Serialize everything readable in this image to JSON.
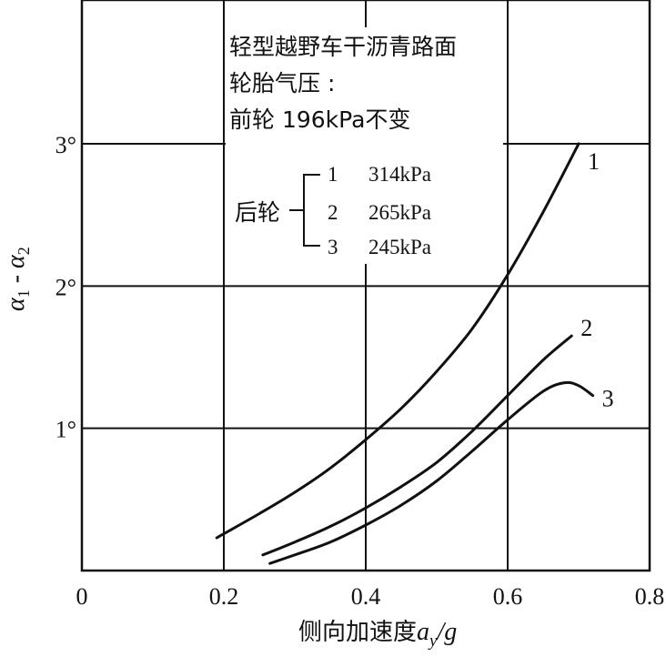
{
  "chart_data": {
    "type": "line",
    "title": "",
    "xlabel": "侧向加速度",
    "xlabel_var": "a",
    "xlabel_sub": "y",
    "xlabel_tail": "/g",
    "ylabel_parts": [
      "α",
      "1",
      " - ",
      "α",
      "2"
    ],
    "xlim": [
      0,
      0.8
    ],
    "ylim": [
      0,
      3
    ],
    "x_ticks": [
      0,
      0.2,
      0.4,
      0.6,
      0.8
    ],
    "x_tick_labels": [
      "0",
      "0.2",
      "0.4",
      "0.6",
      "0.8"
    ],
    "y_ticks": [
      1,
      2,
      3
    ],
    "y_tick_labels": [
      "1°",
      "2°",
      "3°"
    ],
    "grid": true,
    "annotation": {
      "lines": [
        "轻型越野车干沥青路面",
        "轮胎气压 :",
        "前轮 196kPa不变"
      ],
      "rear_label": "后轮",
      "rear_items": [
        {
          "num": "1",
          "value": "314kPa"
        },
        {
          "num": "2",
          "value": "265kPa"
        },
        {
          "num": "3",
          "value": "245kPa"
        }
      ]
    },
    "series": [
      {
        "label": "1",
        "x": [
          0.19,
          0.25,
          0.3,
          0.35,
          0.4,
          0.45,
          0.5,
          0.55,
          0.6,
          0.65,
          0.7
        ],
        "y": [
          0.23,
          0.4,
          0.55,
          0.72,
          0.92,
          1.14,
          1.4,
          1.7,
          2.08,
          2.52,
          3.0
        ]
      },
      {
        "label": "2",
        "x": [
          0.255,
          0.3,
          0.35,
          0.4,
          0.45,
          0.5,
          0.55,
          0.6,
          0.65,
          0.69
        ],
        "y": [
          0.11,
          0.2,
          0.31,
          0.44,
          0.59,
          0.76,
          0.98,
          1.23,
          1.48,
          1.65
        ]
      },
      {
        "label": "3",
        "x": [
          0.265,
          0.3,
          0.35,
          0.4,
          0.45,
          0.5,
          0.55,
          0.6,
          0.65,
          0.68,
          0.7,
          0.72
        ],
        "y": [
          0.05,
          0.11,
          0.2,
          0.32,
          0.46,
          0.63,
          0.84,
          1.06,
          1.26,
          1.32,
          1.3,
          1.23
        ]
      }
    ]
  }
}
